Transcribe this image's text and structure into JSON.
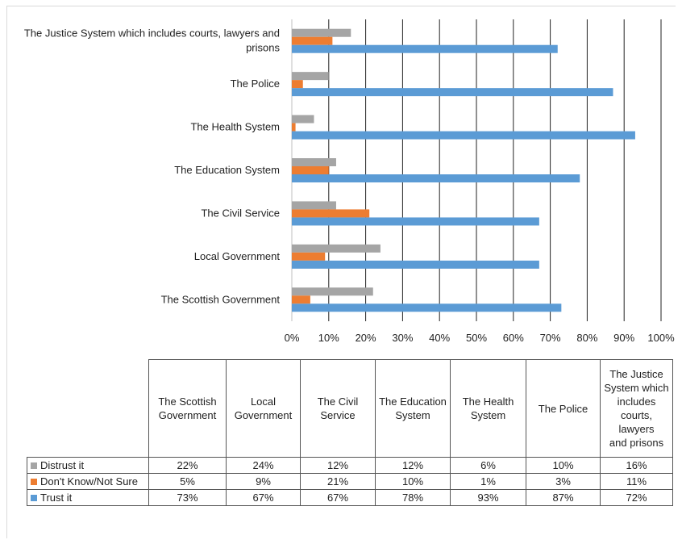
{
  "chart_data": {
    "type": "bar",
    "orientation": "horizontal",
    "categories": [
      "The Justice System which includes courts, lawyers and prisons",
      "The Police",
      "The Health System",
      "The Education System",
      "The Civil Service",
      "Local Government",
      "The Scottish Government"
    ],
    "category_label_lines": [
      [
        "The Justice System which includes courts, lawyers and",
        "prisons"
      ],
      [
        "The Police"
      ],
      [
        "The Health System"
      ],
      [
        "The Education System"
      ],
      [
        "The Civil Service"
      ],
      [
        "Local Government"
      ],
      [
        "The Scottish Government"
      ]
    ],
    "series": [
      {
        "name": "Distrust it",
        "color": "#a5a5a5",
        "values": [
          16,
          10,
          6,
          12,
          12,
          24,
          22
        ]
      },
      {
        "name": "Don't Know/Not Sure",
        "color": "#ed7d31",
        "values": [
          11,
          3,
          1,
          10,
          21,
          9,
          5
        ]
      },
      {
        "name": "Trust it",
        "color": "#5b9bd5",
        "values": [
          72,
          87,
          93,
          78,
          67,
          67,
          73
        ]
      }
    ],
    "xlim": [
      0,
      100
    ],
    "x_ticks": [
      "0%",
      "10%",
      "20%",
      "30%",
      "40%",
      "50%",
      "60%",
      "70%",
      "80%",
      "90%",
      "100%"
    ],
    "grid": true
  },
  "table": {
    "columns": [
      [
        "The Scottish",
        "Government"
      ],
      [
        "Local",
        "Government"
      ],
      [
        "The Civil",
        "Service"
      ],
      [
        "The Education",
        "System"
      ],
      [
        "The Health",
        "System"
      ],
      [
        "The Police"
      ],
      [
        "The Justice",
        "System which",
        "includes",
        "courts, lawyers",
        "and prisons"
      ]
    ],
    "rows": [
      {
        "label": "Distrust it",
        "color": "#a5a5a5",
        "cells": [
          "22%",
          "24%",
          "12%",
          "12%",
          "6%",
          "10%",
          "16%"
        ]
      },
      {
        "label": "Don't Know/Not Sure",
        "color": "#ed7d31",
        "cells": [
          "5%",
          "9%",
          "21%",
          "10%",
          "1%",
          "3%",
          "11%"
        ]
      },
      {
        "label": "Trust it",
        "color": "#5b9bd5",
        "cells": [
          "73%",
          "67%",
          "67%",
          "78%",
          "93%",
          "87%",
          "72%"
        ]
      }
    ]
  }
}
